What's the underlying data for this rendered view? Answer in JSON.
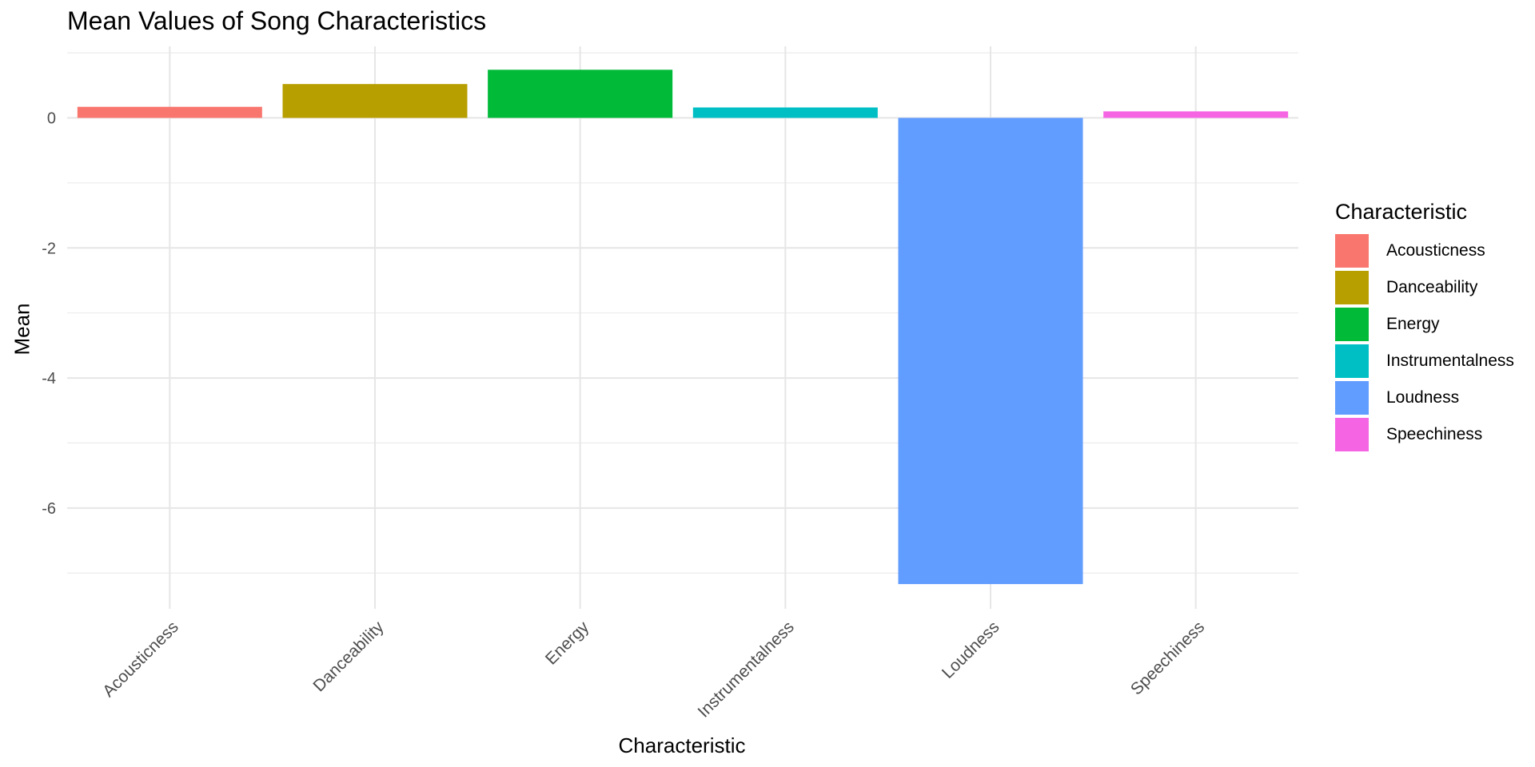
{
  "chart_data": {
    "type": "bar",
    "title": "Mean Values of Song Characteristics",
    "xlabel": "Characteristic",
    "ylabel": "Mean",
    "categories": [
      "Acousticness",
      "Danceability",
      "Energy",
      "Instrumentalness",
      "Loudness",
      "Speechiness"
    ],
    "values": [
      0.17,
      0.52,
      0.74,
      0.16,
      -7.17,
      0.1
    ],
    "colors": [
      "#F8766D",
      "#B79F00",
      "#00BA38",
      "#00BFC4",
      "#619CFF",
      "#F564E3"
    ],
    "ylim": [
      -7.55,
      1.1
    ],
    "yticks": [
      0,
      -2,
      -4,
      -6
    ],
    "ytick_labels": [
      "0",
      "-2",
      "-4",
      "-6"
    ],
    "grid": true,
    "legend": {
      "title": "Characteristic",
      "placement": "right",
      "entries": [
        "Acousticness",
        "Danceability",
        "Energy",
        "Instrumentalness",
        "Loudness",
        "Speechiness"
      ]
    }
  }
}
